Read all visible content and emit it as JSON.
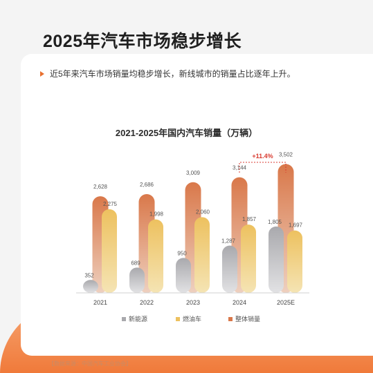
{
  "page": {
    "title": "2025年汽车市场稳步增长",
    "bullet": "近5年来汽车市场销量均稳步增长，新线城市的销量占比逐年上升。",
    "source": "【数据来源：中国汽车工业协会】"
  },
  "colors": {
    "total": "#d9784a",
    "fuel": "#edc15f",
    "nev": "#a9a9ad",
    "accent": "#e8702f",
    "growth": "#d93a2f"
  },
  "chart_data": {
    "type": "bar",
    "title": "2021-2025年国内汽车销量（万辆）",
    "categories": [
      "2021",
      "2022",
      "2023",
      "2024",
      "2025E"
    ],
    "series": [
      {
        "name": "新能源",
        "values": [
          352,
          689,
          950,
          1287,
          1805
        ],
        "labels": [
          "352",
          "689",
          "950",
          "1,287",
          "1,805"
        ]
      },
      {
        "name": "燃油车",
        "values": [
          2275,
          1998,
          2060,
          1857,
          1697
        ],
        "labels": [
          "2,275",
          "1,998",
          "2,060",
          "1,857",
          "1,697"
        ]
      },
      {
        "name": "整体销量",
        "values": [
          2628,
          2686,
          3009,
          3144,
          3502
        ],
        "labels": [
          "2,628",
          "2,686",
          "3,009",
          "3,144",
          "3,502"
        ]
      }
    ],
    "ylim": [
      0,
      3700
    ],
    "annotation": {
      "text": "+11.4%",
      "from": "2024",
      "to": "2025E"
    },
    "legend": "bottom",
    "grid": false
  }
}
